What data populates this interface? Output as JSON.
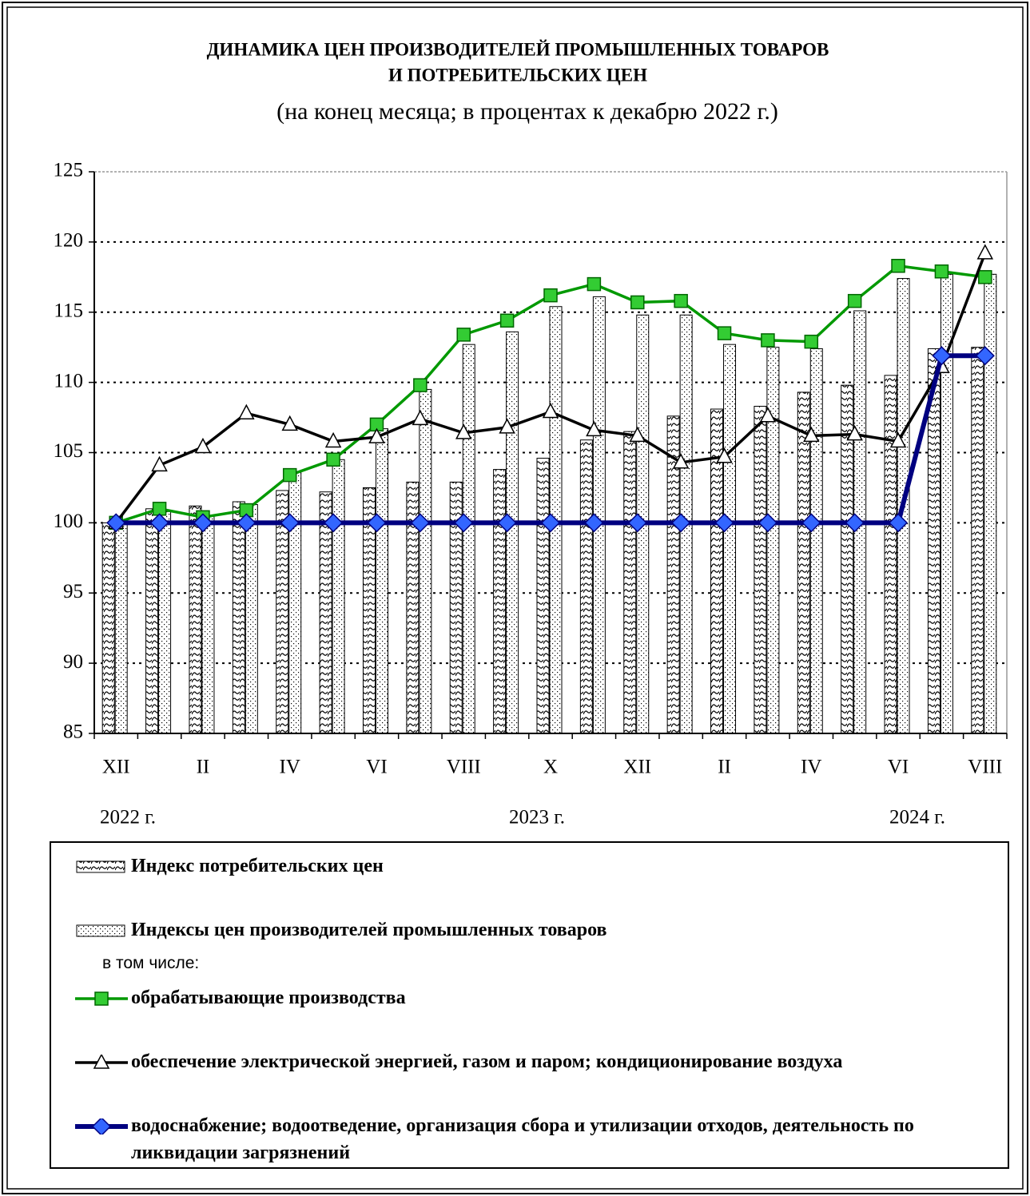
{
  "chart_data": {
    "type": "bar",
    "title": "ДИНАМИКА ЦЕН ПРОИЗВОДИТЕЛЕЙ ПРОМЫШЛЕННЫХ ТОВАРОВ",
    "title_line2": "И ПОТРЕБИТЕЛЬСКИХ ЦЕН",
    "subtitle": "(на конец месяца; в процентах к декабрю 2022 г.)",
    "categories": [
      "XII",
      null,
      "II",
      null,
      "IV",
      null,
      "VI",
      null,
      "VIII",
      null,
      "X",
      null,
      "XII",
      null,
      "II",
      null,
      "IV",
      null,
      "VI",
      null,
      "VIII"
    ],
    "annotations": [
      "2022 г.",
      "2023 г.",
      "2024 г."
    ],
    "legend_note": "в том числе:",
    "ylim": [
      85,
      125
    ],
    "yticks": [
      85,
      90,
      95,
      100,
      105,
      110,
      115,
      120,
      125
    ],
    "grid": true,
    "series": [
      {
        "name": "Индекс потребительских цен",
        "type": "bar",
        "pattern": "hatch",
        "color": "#000000",
        "values": [
          100,
          101.0,
          101.2,
          101.5,
          102.3,
          102.2,
          102.5,
          102.9,
          102.9,
          103.8,
          104.6,
          105.9,
          106.5,
          107.6,
          108.1,
          108.3,
          109.3,
          109.8,
          110.5,
          112.4,
          112.5
        ]
      },
      {
        "name": "Индексы цен производителей промышленных товаров",
        "type": "bar",
        "pattern": "dots",
        "color": "#000000",
        "values": [
          100,
          100.8,
          100.5,
          101.3,
          103.6,
          104.5,
          106.7,
          109.5,
          112.7,
          113.6,
          115.4,
          116.1,
          114.8,
          114.8,
          112.7,
          112.5,
          112.4,
          115.1,
          117.4,
          117.7,
          117.7
        ]
      },
      {
        "name": "обрабатывающие производства",
        "type": "line",
        "marker": "square",
        "color": "#009900",
        "marker_color": "#33cc33",
        "values": [
          100,
          101.0,
          100.4,
          100.9,
          103.4,
          104.5,
          107.0,
          109.8,
          113.4,
          114.4,
          116.2,
          117.0,
          115.7,
          115.8,
          113.5,
          113.0,
          112.9,
          115.8,
          118.3,
          117.9,
          117.5
        ]
      },
      {
        "name": "обеспечение электрической энергией, газом и паром; кондиционирование воздуха",
        "type": "line",
        "marker": "triangle",
        "color": "#000000",
        "marker_color": "#ffffff",
        "values": [
          100,
          104.1,
          105.4,
          107.8,
          107.0,
          105.8,
          106.1,
          107.4,
          106.4,
          106.8,
          107.9,
          106.6,
          106.2,
          104.3,
          104.7,
          107.6,
          106.2,
          106.3,
          105.8,
          111.1,
          119.2
        ]
      },
      {
        "name": "водоснабжение; водоотведение, организация сбора и утилизации отходов, деятельность по ликвидации загрязнений",
        "type": "line",
        "marker": "diamond",
        "color": "#000080",
        "marker_color": "#3366ff",
        "values": [
          100,
          100,
          100,
          100,
          100,
          100,
          100,
          100,
          100,
          100,
          100,
          100,
          100,
          100,
          100,
          100,
          100,
          100,
          100,
          111.9,
          111.9
        ]
      }
    ]
  }
}
